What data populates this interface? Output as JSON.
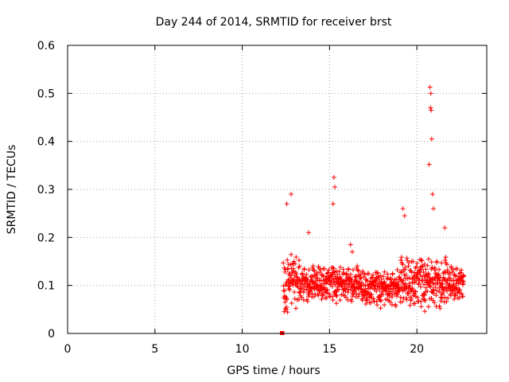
{
  "chart_data": {
    "type": "scatter",
    "title": "Day 244 of 2014, SRMTID for receiver brst",
    "xlabel": "GPS time / hours",
    "ylabel": "SRMTID / TECUs",
    "xlim": [
      0,
      24
    ],
    "ylim": [
      0,
      0.6
    ],
    "xticks": [
      0,
      5,
      10,
      15,
      20
    ],
    "xtick_labels": [
      "0",
      "5",
      "10",
      "15",
      "20"
    ],
    "yticks": [
      0,
      0.1,
      0.2,
      0.3,
      0.4,
      0.5,
      0.6
    ],
    "ytick_labels": [
      "0",
      "0.1",
      "0.2",
      "0.3",
      "0.4",
      "0.5",
      "0.6"
    ],
    "grid": true,
    "marker": "+",
    "color": "#ff0000",
    "zero_points": {
      "x": [
        12.25,
        12.28,
        12.3,
        12.32
      ],
      "y": [
        0,
        0,
        0,
        0
      ]
    },
    "series": [
      {
        "name": "SRMTID",
        "x_start": 12.35,
        "x_end": 22.7,
        "baseline": 0.1,
        "spikes": [
          {
            "x": 12.8,
            "y": 0.29
          },
          {
            "x": 12.55,
            "y": 0.27
          },
          {
            "x": 15.25,
            "y": 0.325
          },
          {
            "x": 15.3,
            "y": 0.305
          },
          {
            "x": 15.2,
            "y": 0.27
          },
          {
            "x": 19.2,
            "y": 0.26
          },
          {
            "x": 19.3,
            "y": 0.245
          },
          {
            "x": 20.75,
            "y": 0.513
          },
          {
            "x": 20.8,
            "y": 0.5
          },
          {
            "x": 20.78,
            "y": 0.47
          },
          {
            "x": 20.82,
            "y": 0.465
          },
          {
            "x": 20.85,
            "y": 0.405
          },
          {
            "x": 20.7,
            "y": 0.352
          },
          {
            "x": 20.9,
            "y": 0.29
          },
          {
            "x": 20.95,
            "y": 0.26
          },
          {
            "x": 21.6,
            "y": 0.22
          },
          {
            "x": 13.8,
            "y": 0.21
          },
          {
            "x": 16.2,
            "y": 0.185
          },
          {
            "x": 16.3,
            "y": 0.17
          }
        ]
      }
    ]
  }
}
